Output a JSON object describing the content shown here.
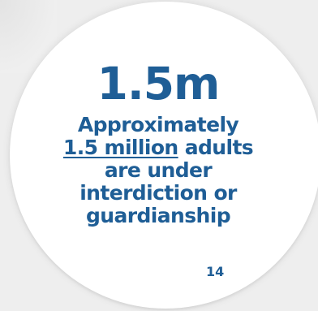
{
  "stat": {
    "value": "1.5m",
    "line1": "Approximately",
    "highlight": "1.5 million",
    "line2_rest": "adults",
    "line3": "are under",
    "line4": "interdiction or",
    "line5": "guardianship"
  },
  "footnote": "14",
  "colors": {
    "text": "#1f5e96",
    "circle": "#ffffff",
    "background": "#eeeeee"
  }
}
